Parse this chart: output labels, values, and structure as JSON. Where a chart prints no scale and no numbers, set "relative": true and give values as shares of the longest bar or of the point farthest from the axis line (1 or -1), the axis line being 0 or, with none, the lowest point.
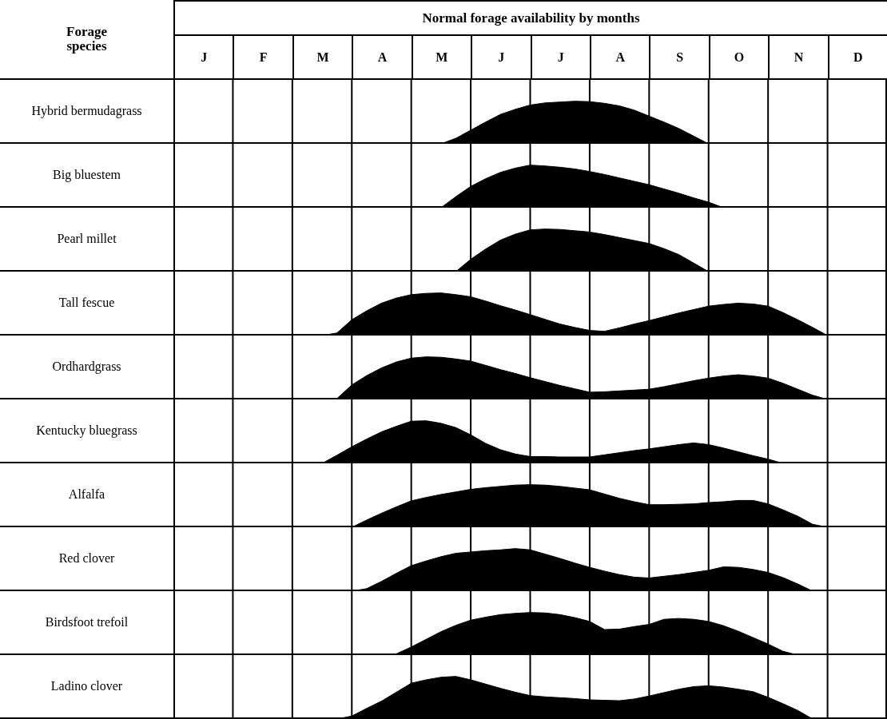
{
  "chart_data": [
    {
      "type": "other",
      "title": "Normal forage availability by months",
      "annotations": [
        "Forage species"
      ],
      "categories": [
        "J",
        "F",
        "M",
        "A",
        "M",
        "J",
        "J",
        "A",
        "S",
        "O",
        "N",
        "D"
      ]
    },
    {
      "type": "area",
      "ylabel": "Hybrid bermudagrass",
      "grid": "x",
      "relative": true,
      "color": "#000000",
      "tick_labels": false,
      "categories": [
        null,
        null,
        null,
        null,
        null,
        null,
        null,
        null,
        null,
        null,
        null,
        null,
        null,
        null,
        null,
        null,
        null,
        null,
        null,
        null,
        null,
        null,
        null,
        null,
        null,
        null,
        null,
        null,
        null,
        null,
        null,
        null,
        null,
        null,
        null,
        null,
        null,
        null,
        null,
        null,
        null,
        null,
        null,
        null,
        null,
        null,
        null,
        null,
        null
      ],
      "values": [
        0,
        0,
        0,
        0,
        0,
        0,
        0,
        0,
        0,
        0,
        0,
        0,
        0,
        0,
        0,
        0,
        0,
        0,
        0,
        0.13,
        0.32,
        0.51,
        0.69,
        0.81,
        0.91,
        0.96,
        0.98,
        1,
        0.99,
        0.95,
        0.89,
        0.79,
        0.65,
        0.51,
        0.36,
        0.18,
        0,
        0,
        0,
        0,
        0,
        0,
        0,
        0,
        0,
        0,
        0,
        0,
        0
      ]
    },
    {
      "type": "area",
      "ylabel": "Big bluestem",
      "grid": "x",
      "relative": true,
      "color": "#000000",
      "tick_labels": false,
      "categories": [
        null,
        null,
        null,
        null,
        null,
        null,
        null,
        null,
        null,
        null,
        null,
        null,
        null,
        null,
        null,
        null,
        null,
        null,
        null,
        null,
        null,
        null,
        null,
        null,
        null,
        null,
        null,
        null,
        null,
        null,
        null,
        null,
        null,
        null,
        null,
        null,
        null,
        null,
        null,
        null,
        null,
        null,
        null,
        null,
        null,
        null,
        null,
        null,
        null
      ],
      "values": [
        0,
        0,
        0,
        0,
        0,
        0,
        0,
        0,
        0,
        0,
        0,
        0,
        0,
        0,
        0,
        0,
        0,
        0,
        0,
        0.26,
        0.5,
        0.68,
        0.83,
        0.93,
        1,
        0.98,
        0.95,
        0.91,
        0.85,
        0.78,
        0.7,
        0.62,
        0.54,
        0.44,
        0.34,
        0.23,
        0.13,
        0,
        0,
        0,
        0,
        0,
        0,
        0,
        0,
        0,
        0,
        0,
        0
      ]
    },
    {
      "type": "area",
      "ylabel": "Pearl millet",
      "grid": "x",
      "relative": true,
      "color": "#000000",
      "tick_labels": false,
      "categories": [
        null,
        null,
        null,
        null,
        null,
        null,
        null,
        null,
        null,
        null,
        null,
        null,
        null,
        null,
        null,
        null,
        null,
        null,
        null,
        null,
        null,
        null,
        null,
        null,
        null,
        null,
        null,
        null,
        null,
        null,
        null,
        null,
        null,
        null,
        null,
        null,
        null,
        null,
        null,
        null,
        null,
        null,
        null,
        null,
        null,
        null,
        null,
        null,
        null
      ],
      "values": [
        0,
        0,
        0,
        0,
        0,
        0,
        0,
        0,
        0,
        0,
        0,
        0,
        0,
        0,
        0,
        0,
        0,
        0,
        0,
        0,
        0.29,
        0.53,
        0.74,
        0.88,
        0.98,
        1,
        0.99,
        0.96,
        0.93,
        0.87,
        0.8,
        0.73,
        0.66,
        0.54,
        0.4,
        0.2,
        0,
        0,
        0,
        0,
        0,
        0,
        0,
        0,
        0,
        0,
        0,
        0,
        0
      ]
    },
    {
      "type": "area",
      "ylabel": "Tall fescue",
      "grid": "x",
      "relative": true,
      "color": "#000000",
      "tick_labels": false,
      "categories": [
        null,
        null,
        null,
        null,
        null,
        null,
        null,
        null,
        null,
        null,
        null,
        null,
        null,
        null,
        null,
        null,
        null,
        null,
        null,
        null,
        null,
        null,
        null,
        null,
        null,
        null,
        null,
        null,
        null,
        null,
        null,
        null,
        null,
        null,
        null,
        null,
        null,
        null,
        null,
        null,
        null,
        null,
        null,
        null,
        null,
        null,
        null,
        null,
        null
      ],
      "values": [
        0,
        0,
        0,
        0,
        0,
        0,
        0,
        0,
        0,
        0,
        0,
        0.06,
        0.37,
        0.58,
        0.76,
        0.88,
        0.96,
        0.99,
        1,
        0.96,
        0.91,
        0.81,
        0.7,
        0.6,
        0.49,
        0.38,
        0.27,
        0.19,
        0.12,
        0.1,
        0.18,
        0.27,
        0.35,
        0.44,
        0.53,
        0.61,
        0.69,
        0.73,
        0.76,
        0.74,
        0.69,
        0.54,
        0.37,
        0.19,
        0,
        0,
        0,
        0,
        0
      ]
    },
    {
      "type": "area",
      "ylabel": "Ordhardgrass",
      "grid": "x",
      "relative": true,
      "color": "#000000",
      "tick_labels": false,
      "categories": [
        null,
        null,
        null,
        null,
        null,
        null,
        null,
        null,
        null,
        null,
        null,
        null,
        null,
        null,
        null,
        null,
        null,
        null,
        null,
        null,
        null,
        null,
        null,
        null,
        null,
        null,
        null,
        null,
        null,
        null,
        null,
        null,
        null,
        null,
        null,
        null,
        null,
        null,
        null,
        null,
        null,
        null,
        null,
        null,
        null,
        null,
        null,
        null,
        null
      ],
      "values": [
        0,
        0,
        0,
        0,
        0,
        0,
        0,
        0,
        0,
        0,
        0,
        0.02,
        0.34,
        0.56,
        0.74,
        0.88,
        0.97,
        1,
        0.99,
        0.95,
        0.9,
        0.8,
        0.7,
        0.61,
        0.51,
        0.42,
        0.33,
        0.25,
        0.17,
        0.18,
        0.2,
        0.22,
        0.24,
        0.3,
        0.37,
        0.44,
        0.5,
        0.55,
        0.58,
        0.55,
        0.5,
        0.38,
        0.24,
        0.1,
        0,
        0,
        0,
        0,
        0
      ]
    },
    {
      "type": "area",
      "ylabel": "Kentucky bluegrass",
      "grid": "x",
      "relative": true,
      "color": "#000000",
      "tick_labels": false,
      "categories": [
        null,
        null,
        null,
        null,
        null,
        null,
        null,
        null,
        null,
        null,
        null,
        null,
        null,
        null,
        null,
        null,
        null,
        null,
        null,
        null,
        null,
        null,
        null,
        null,
        null,
        null,
        null,
        null,
        null,
        null,
        null,
        null,
        null,
        null,
        null,
        null,
        null,
        null,
        null,
        null,
        null,
        null,
        null,
        null,
        null,
        null,
        null,
        null,
        null
      ],
      "values": [
        0,
        0,
        0,
        0,
        0,
        0,
        0,
        0,
        0,
        0,
        0,
        0.19,
        0.39,
        0.57,
        0.74,
        0.87,
        0.99,
        1,
        0.94,
        0.84,
        0.67,
        0.47,
        0.32,
        0.22,
        0.16,
        0.16,
        0.15,
        0.15,
        0.15,
        0.2,
        0.25,
        0.3,
        0.34,
        0.39,
        0.44,
        0.48,
        0.44,
        0.36,
        0.27,
        0.18,
        0.1,
        0,
        0,
        0,
        0,
        0,
        0,
        0,
        0
      ]
    },
    {
      "type": "area",
      "ylabel": "Alfalfa",
      "grid": "x",
      "relative": true,
      "color": "#000000",
      "tick_labels": false,
      "categories": [
        null,
        null,
        null,
        null,
        null,
        null,
        null,
        null,
        null,
        null,
        null,
        null,
        null,
        null,
        null,
        null,
        null,
        null,
        null,
        null,
        null,
        null,
        null,
        null,
        null,
        null,
        null,
        null,
        null,
        null,
        null,
        null,
        null,
        null,
        null,
        null,
        null,
        null,
        null,
        null,
        null,
        null,
        null,
        null,
        null,
        null,
        null,
        null,
        null
      ],
      "values": [
        0,
        0,
        0,
        0,
        0,
        0,
        0,
        0,
        0,
        0,
        0,
        0,
        0,
        0.17,
        0.33,
        0.48,
        0.62,
        0.7,
        0.77,
        0.83,
        0.89,
        0.93,
        0.96,
        0.99,
        1,
        0.99,
        0.96,
        0.92,
        0.88,
        0.78,
        0.68,
        0.6,
        0.53,
        0.53,
        0.54,
        0.55,
        0.58,
        0.6,
        0.63,
        0.63,
        0.55,
        0.41,
        0.26,
        0.07,
        0,
        0,
        0,
        0,
        0
      ]
    },
    {
      "type": "area",
      "ylabel": "Red clover",
      "grid": "x",
      "relative": true,
      "color": "#000000",
      "tick_labels": false,
      "categories": [
        null,
        null,
        null,
        null,
        null,
        null,
        null,
        null,
        null,
        null,
        null,
        null,
        null,
        null,
        null,
        null,
        null,
        null,
        null,
        null,
        null,
        null,
        null,
        null,
        null,
        null,
        null,
        null,
        null,
        null,
        null,
        null,
        null,
        null,
        null,
        null,
        null,
        null,
        null,
        null,
        null,
        null,
        null,
        null,
        null,
        null,
        null,
        null,
        null
      ],
      "values": [
        0,
        0,
        0,
        0,
        0,
        0,
        0,
        0,
        0,
        0,
        0,
        0,
        0,
        0.06,
        0.23,
        0.42,
        0.6,
        0.71,
        0.81,
        0.89,
        0.92,
        0.95,
        0.97,
        1,
        0.97,
        0.87,
        0.77,
        0.66,
        0.56,
        0.47,
        0.39,
        0.33,
        0.31,
        0.35,
        0.39,
        0.44,
        0.49,
        0.57,
        0.56,
        0.51,
        0.44,
        0.32,
        0.17,
        0,
        0,
        0,
        0,
        0,
        0
      ]
    },
    {
      "type": "area",
      "ylabel": "Birdsfoot trefoil",
      "grid": "x",
      "relative": true,
      "color": "#000000",
      "tick_labels": false,
      "categories": [
        null,
        null,
        null,
        null,
        null,
        null,
        null,
        null,
        null,
        null,
        null,
        null,
        null,
        null,
        null,
        null,
        null,
        null,
        null,
        null,
        null,
        null,
        null,
        null,
        null,
        null,
        null,
        null,
        null,
        null,
        null,
        null,
        null,
        null,
        null,
        null,
        null,
        null,
        null,
        null,
        null,
        null,
        null,
        null,
        null,
        null,
        null,
        null,
        null
      ],
      "values": [
        0,
        0,
        0,
        0,
        0,
        0,
        0,
        0,
        0,
        0,
        0,
        0,
        0,
        0,
        0,
        0.03,
        0.19,
        0.37,
        0.55,
        0.7,
        0.82,
        0.89,
        0.95,
        0.98,
        1,
        0.99,
        0.95,
        0.88,
        0.79,
        0.6,
        0.61,
        0.67,
        0.72,
        0.84,
        0.86,
        0.84,
        0.79,
        0.69,
        0.56,
        0.41,
        0.26,
        0.09,
        0,
        0,
        0,
        0,
        0,
        0,
        0
      ]
    },
    {
      "type": "area",
      "ylabel": "Ladino clover",
      "grid": "x",
      "relative": true,
      "color": "#000000",
      "tick_labels": false,
      "categories": [
        null,
        null,
        null,
        null,
        null,
        null,
        null,
        null,
        null,
        null,
        null,
        null,
        null,
        null,
        null,
        null,
        null,
        null,
        null,
        null,
        null,
        null,
        null,
        null,
        null,
        null,
        null,
        null,
        null,
        null,
        null,
        null,
        null,
        null,
        null,
        null,
        null,
        null,
        null,
        null,
        null,
        null,
        null,
        null,
        null,
        null,
        null,
        null,
        null
      ],
      "values": [
        0,
        0,
        0,
        0,
        0,
        0,
        0,
        0,
        0,
        0,
        0,
        0,
        0.07,
        0.25,
        0.42,
        0.63,
        0.84,
        0.92,
        0.98,
        1,
        0.92,
        0.82,
        0.72,
        0.63,
        0.55,
        0.52,
        0.5,
        0.48,
        0.45,
        0.44,
        0.43,
        0.47,
        0.54,
        0.62,
        0.7,
        0.76,
        0.78,
        0.75,
        0.7,
        0.64,
        0.51,
        0.36,
        0.2,
        0,
        0,
        0,
        0,
        0,
        0
      ]
    }
  ]
}
